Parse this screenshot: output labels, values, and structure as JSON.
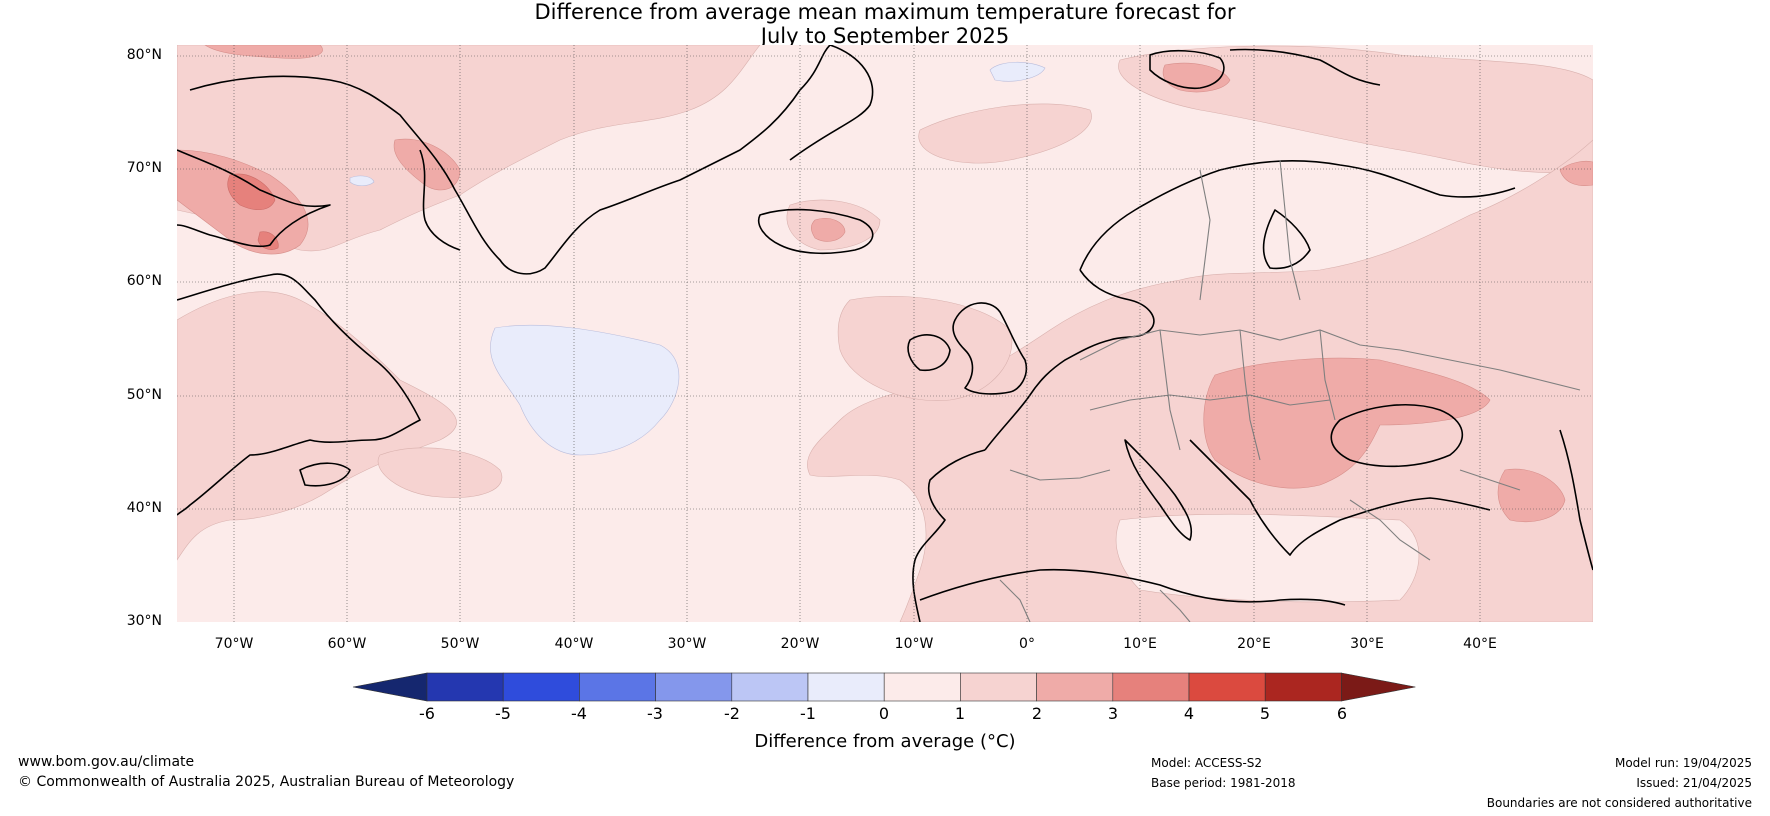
{
  "title_line1": "Difference from average mean maximum temperature forecast for",
  "title_line2": "July to September 2025",
  "map": {
    "lat_labels": [
      "80°N",
      "70°N",
      "60°N",
      "50°N",
      "40°N",
      "30°N"
    ],
    "lon_labels": [
      "70°W",
      "60°W",
      "50°W",
      "40°W",
      "30°W",
      "20°W",
      "10°W",
      "0°",
      "10°E",
      "20°E",
      "30°E",
      "40°E"
    ],
    "lat_range": [
      30,
      80
    ],
    "lon_range": [
      -75,
      50
    ],
    "grid": true,
    "colors": {
      "ocean_base": "#fcebea",
      "anomaly_1_2": "#f6d3d1",
      "anomaly_2_3": "#efaba8",
      "anomaly_3_4": "#e6817c",
      "anomaly_neg_0_1": "#e9ecfb",
      "coastline": "#000000",
      "borders": "#7f7f7f"
    }
  },
  "colorbar": {
    "ticks": [
      "-6",
      "-5",
      "-4",
      "-3",
      "-2",
      "-1",
      "0",
      "1",
      "2",
      "3",
      "4",
      "5",
      "6"
    ],
    "colors": [
      "#15276f",
      "#2437b0",
      "#2f4cdc",
      "#5b75e6",
      "#8497ec",
      "#bcc6f5",
      "#e9ecfb",
      "#fcebea",
      "#f6d3d1",
      "#efaba8",
      "#e6817c",
      "#db4a3f",
      "#ab2620",
      "#7b1a17"
    ],
    "label": "Difference from average (°C)"
  },
  "footer": {
    "website": "www.bom.gov.au/climate",
    "copyright": "© Commonwealth of Australia 2025, Australian Bureau of Meteorology",
    "model": "Model: ACCESS-S2",
    "base_period": "Base period: 1981-2018",
    "model_run": "Model run: 19/04/2025",
    "issued": "Issued: 21/04/2025",
    "disclaimer": "Boundaries are not considered authoritative"
  }
}
